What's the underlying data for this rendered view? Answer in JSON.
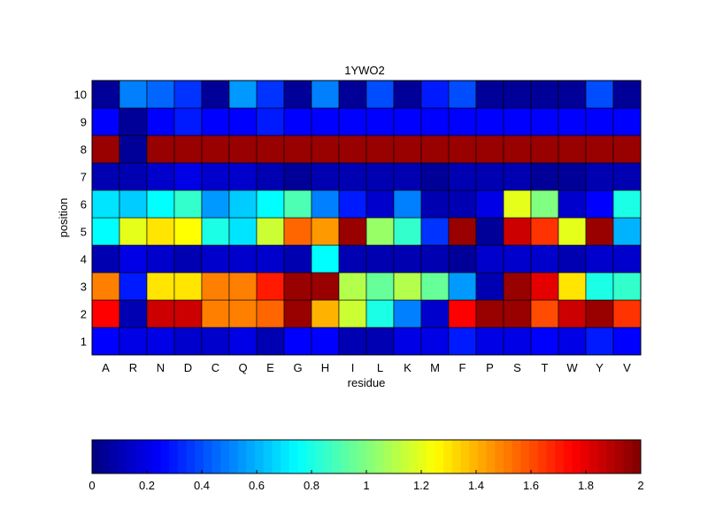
{
  "chart_data": {
    "type": "heatmap",
    "title": "1YWO2",
    "xlabel": "residue",
    "ylabel": "position",
    "x_categories": [
      "A",
      "R",
      "N",
      "D",
      "C",
      "Q",
      "E",
      "G",
      "H",
      "I",
      "L",
      "K",
      "M",
      "F",
      "P",
      "S",
      "T",
      "W",
      "Y",
      "V"
    ],
    "y_categories": [
      "1",
      "2",
      "3",
      "4",
      "5",
      "6",
      "7",
      "8",
      "9",
      "10"
    ],
    "values": [
      [
        0.25,
        0.2,
        0.2,
        0.15,
        0.15,
        0.2,
        0.1,
        0.25,
        0.25,
        0.1,
        0.1,
        0.2,
        0.2,
        0.3,
        0.2,
        0.2,
        0.25,
        0.2,
        0.3,
        0.25
      ],
      [
        1.75,
        0.1,
        1.85,
        1.85,
        1.5,
        1.5,
        1.55,
        1.95,
        1.4,
        1.15,
        0.8,
        0.5,
        0.15,
        1.75,
        1.95,
        1.95,
        1.6,
        1.85,
        1.95,
        1.65
      ],
      [
        1.5,
        0.3,
        1.3,
        1.3,
        1.5,
        1.5,
        1.7,
        1.95,
        1.95,
        1.1,
        0.95,
        1.1,
        0.95,
        0.55,
        0.1,
        1.95,
        1.8,
        1.3,
        0.8,
        0.85
      ],
      [
        0.1,
        0.2,
        0.15,
        0.1,
        0.15,
        0.15,
        0.15,
        0.1,
        0.75,
        0.1,
        0.1,
        0.1,
        0.1,
        0.05,
        0.15,
        0.15,
        0.15,
        0.1,
        0.15,
        0.15
      ],
      [
        0.75,
        1.2,
        1.3,
        1.25,
        0.8,
        0.7,
        1.15,
        1.55,
        1.45,
        1.95,
        1.05,
        0.85,
        0.35,
        1.95,
        0.05,
        1.85,
        1.65,
        1.2,
        1.95,
        0.6
      ],
      [
        0.7,
        0.65,
        0.75,
        0.85,
        0.55,
        0.65,
        0.75,
        0.9,
        0.5,
        0.3,
        0.15,
        0.5,
        0.1,
        0.1,
        0.2,
        1.2,
        1.0,
        0.15,
        0.25,
        0.8
      ],
      [
        0.1,
        0.1,
        0.15,
        0.2,
        0.15,
        0.15,
        0.1,
        0.05,
        0.1,
        0.1,
        0.1,
        0.1,
        0.05,
        0.1,
        0.1,
        0.1,
        0.05,
        0.05,
        0.1,
        0.1
      ],
      [
        1.95,
        0.05,
        1.95,
        1.95,
        1.95,
        1.95,
        1.95,
        1.95,
        1.95,
        1.95,
        1.95,
        1.95,
        1.95,
        1.95,
        1.95,
        1.95,
        1.95,
        1.95,
        1.95,
        1.95
      ],
      [
        0.25,
        0.05,
        0.25,
        0.3,
        0.25,
        0.25,
        0.3,
        0.25,
        0.25,
        0.25,
        0.25,
        0.25,
        0.25,
        0.25,
        0.25,
        0.25,
        0.25,
        0.25,
        0.25,
        0.25
      ],
      [
        0.05,
        0.5,
        0.45,
        0.35,
        0.05,
        0.55,
        0.35,
        0.05,
        0.5,
        0.05,
        0.4,
        0.05,
        0.3,
        0.4,
        0.05,
        0.05,
        0.05,
        0.05,
        0.4,
        0.05
      ]
    ],
    "colorbar": {
      "range": [
        0,
        2
      ],
      "ticks": [
        "0",
        "0.2",
        "0.4",
        "0.6",
        "0.8",
        "1",
        "1.2",
        "1.4",
        "1.6",
        "1.8",
        "2"
      ],
      "placement": "bottom"
    },
    "colormap": "jet"
  }
}
